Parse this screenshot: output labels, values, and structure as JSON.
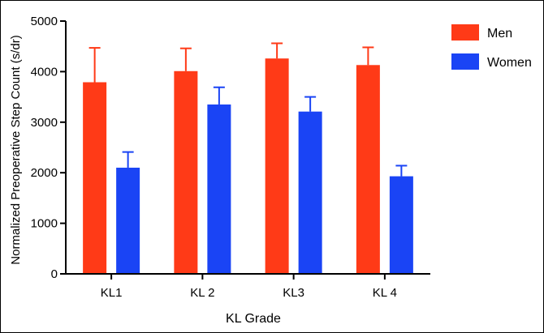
{
  "chart_data": {
    "type": "bar",
    "title": "",
    "xlabel": "KL Grade",
    "ylabel": "Normalized Preoperative Step Count (s/dr)",
    "categories": [
      "KL1",
      "KL 2",
      "KL3",
      "KL 4"
    ],
    "ylim": [
      0,
      5000
    ],
    "yticks": [
      "0",
      "1000",
      "2000",
      "3000",
      "4000",
      "5000"
    ],
    "ytick_values": [
      0,
      1000,
      2000,
      3000,
      4000,
      5000
    ],
    "legend_position": "top-right",
    "series": [
      {
        "name": "Men",
        "color": "#ff3a17",
        "values": [
          3790,
          4010,
          4260,
          4130
        ],
        "errors": [
          680,
          450,
          300,
          350
        ]
      },
      {
        "name": "Women",
        "color": "#1a44f5",
        "values": [
          2100,
          3350,
          3210,
          1930
        ],
        "errors": [
          310,
          340,
          290,
          210
        ]
      }
    ]
  }
}
